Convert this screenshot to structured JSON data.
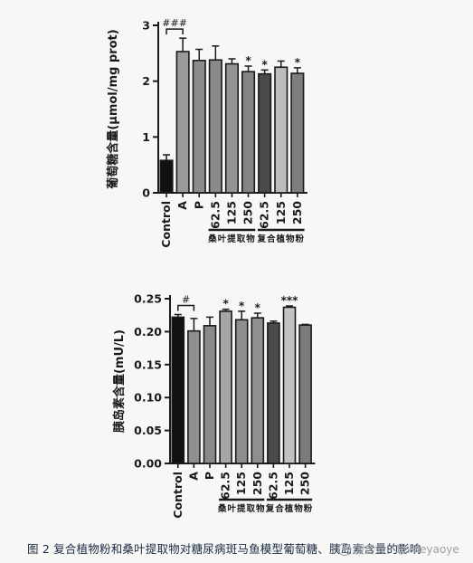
{
  "chart_data": [
    {
      "type": "bar",
      "ylabel": "葡萄糖含量(μmol/mg prot)",
      "ylim": [
        0,
        3
      ],
      "yticks": [
        "0",
        "1",
        "2",
        "3"
      ],
      "categories": [
        "Control",
        "A",
        "P",
        "62.5",
        "125",
        "250",
        "62.5",
        "125",
        "250"
      ],
      "values": [
        0.58,
        2.53,
        2.37,
        2.38,
        2.31,
        2.17,
        2.13,
        2.25,
        2.14
      ],
      "errors": [
        0.1,
        0.24,
        0.2,
        0.25,
        0.09,
        0.1,
        0.07,
        0.11,
        0.1
      ],
      "annotations": [
        "",
        "",
        "",
        "",
        "",
        "*",
        "*",
        "",
        "*"
      ],
      "bracket": {
        "label": "###",
        "from": 0,
        "to": 1
      },
      "groups": [
        {
          "label": "桑叶提取物",
          "from": 3,
          "to": 5
        },
        {
          "label": "复合植物粉",
          "from": 6,
          "to": 8
        }
      ],
      "colors": [
        "#111111",
        "#9a9a9a",
        "#8c8c8c",
        "#8a8a8a",
        "#939393",
        "#848484",
        "#4a4a4a",
        "#bdbdbd",
        "#7e7e7e"
      ]
    },
    {
      "type": "bar",
      "ylabel": "胰岛素含量(mU/L)",
      "ylim": [
        0,
        0.25
      ],
      "yticks": [
        "0.00",
        "0.05",
        "0.10",
        "0.15",
        "0.20",
        "0.25"
      ],
      "categories": [
        "Control",
        "A",
        "P",
        "62.5",
        "125",
        "250",
        "62.5",
        "125",
        "250"
      ],
      "values": [
        0.222,
        0.201,
        0.209,
        0.231,
        0.218,
        0.221,
        0.213,
        0.237,
        0.21
      ],
      "errors": [
        0.004,
        0.019,
        0.013,
        0.003,
        0.013,
        0.007,
        0.003,
        0.002,
        0.001
      ],
      "annotations": [
        "",
        "",
        "",
        "*",
        "*",
        "*",
        "",
        "***",
        ""
      ],
      "bracket": {
        "label": "#",
        "from": 0,
        "to": 1
      },
      "groups": [
        {
          "label": "桑叶提取物",
          "from": 3,
          "to": 5
        },
        {
          "label": "复合植物粉",
          "from": 6,
          "to": 8
        }
      ],
      "colors": [
        "#111111",
        "#8f8f8f",
        "#8a8a8a",
        "#a6a6a6",
        "#8e8e8e",
        "#8f8f8f",
        "#4a4a4a",
        "#c2c2c2",
        "#7a7a7a"
      ]
    }
  ],
  "caption": "图 2  复合植物粉和桑叶提取物对糖尿病斑马鱼模型葡萄糖、胰岛素含量的影响",
  "watermark": "服务号 · bnxieyaoye"
}
